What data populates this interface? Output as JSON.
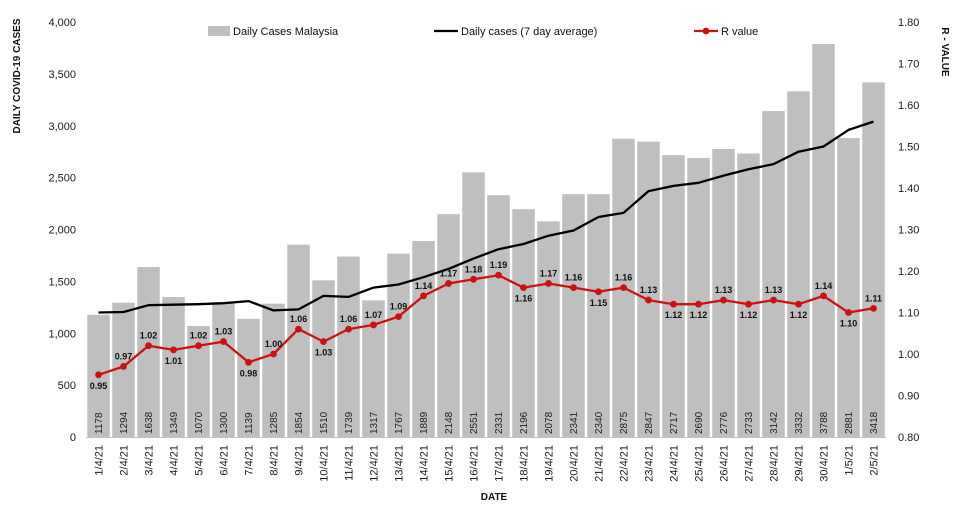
{
  "chart_data": {
    "type": "bar",
    "categories": [
      "1/4/21",
      "2/4/21",
      "3/4/21",
      "4/4/21",
      "5/4/21",
      "6/4/21",
      "7/4/21",
      "8/4/21",
      "9/4/21",
      "10/4/21",
      "11/4/21",
      "12/4/21",
      "13/4/21",
      "14/4/21",
      "15/4/21",
      "16/4/21",
      "17/4/21",
      "18/4/21",
      "19/4/21",
      "20/4/21",
      "21/4/21",
      "22/4/21",
      "23/4/21",
      "24/4/21",
      "25/4/21",
      "26/4/21",
      "27/4/21",
      "28/4/21",
      "29/4/21",
      "30/4/21",
      "1/5/21",
      "2/5/21"
    ],
    "series": [
      {
        "name": "Daily Cases Malaysia",
        "type": "bar",
        "axis": "left",
        "color": "#bfbfbf",
        "values": [
          1178,
          1294,
          1638,
          1349,
          1070,
          1300,
          1139,
          1285,
          1854,
          1510,
          1739,
          1317,
          1767,
          1889,
          2148,
          2551,
          2331,
          2196,
          2078,
          2341,
          2340,
          2875,
          2847,
          2717,
          2690,
          2776,
          2733,
          3142,
          3332,
          3788,
          2881,
          3418
        ]
      },
      {
        "name": "Daily cases (7 day average)",
        "type": "line",
        "axis": "left",
        "color": "#000000",
        "values": [
          1200,
          1205,
          1270,
          1275,
          1280,
          1290,
          1310,
          1220,
          1230,
          1360,
          1350,
          1440,
          1470,
          1540,
          1620,
          1720,
          1810,
          1860,
          1940,
          1990,
          2120,
          2160,
          2370,
          2420,
          2450,
          2520,
          2580,
          2630,
          2750,
          2800,
          2960,
          3040
        ]
      },
      {
        "name": "R value",
        "type": "line",
        "axis": "right",
        "color": "#cc1111",
        "values": [
          0.95,
          0.97,
          1.02,
          1.01,
          1.02,
          1.03,
          0.98,
          1.0,
          1.06,
          1.03,
          1.06,
          1.07,
          1.09,
          1.14,
          1.17,
          1.18,
          1.19,
          1.16,
          1.17,
          1.16,
          1.15,
          1.16,
          1.13,
          1.12,
          1.12,
          1.13,
          1.12,
          1.13,
          1.12,
          1.14,
          1.1,
          1.11
        ],
        "labels": [
          "0.95",
          "0.97",
          "1.02",
          "1.01",
          "1.02",
          "1.03",
          "0.98",
          "1.00",
          "1.06",
          "1.03",
          "1.06",
          "1.07",
          "1.09",
          "1.14",
          "1.17",
          "1.18",
          "1.19",
          "1.16",
          "1.17",
          "1.16",
          "1.15",
          "1.16",
          "1.13",
          "1.12",
          "1.12",
          "1.13",
          "1.12",
          "1.13",
          "1.12",
          "1.14",
          "1.10",
          "1.11"
        ]
      }
    ],
    "xlabel": "DATE",
    "ylabel": "DAILY COVID-19 CASES",
    "y2label": "R - VALUE",
    "ylim": [
      0,
      4000
    ],
    "y_ticks": [
      "0",
      "500",
      "1,000",
      "1,500",
      "2,000",
      "2,500",
      "3,000",
      "3,500",
      "4,000"
    ],
    "y2lim": [
      0.8,
      1.8
    ],
    "y2_ticks": [
      "0.80",
      "0.90",
      "1.00",
      "1.10",
      "1.20",
      "1.30",
      "1.40",
      "1.50",
      "1.60",
      "1.70",
      "1.80"
    ],
    "grid": false,
    "legend": "top"
  }
}
